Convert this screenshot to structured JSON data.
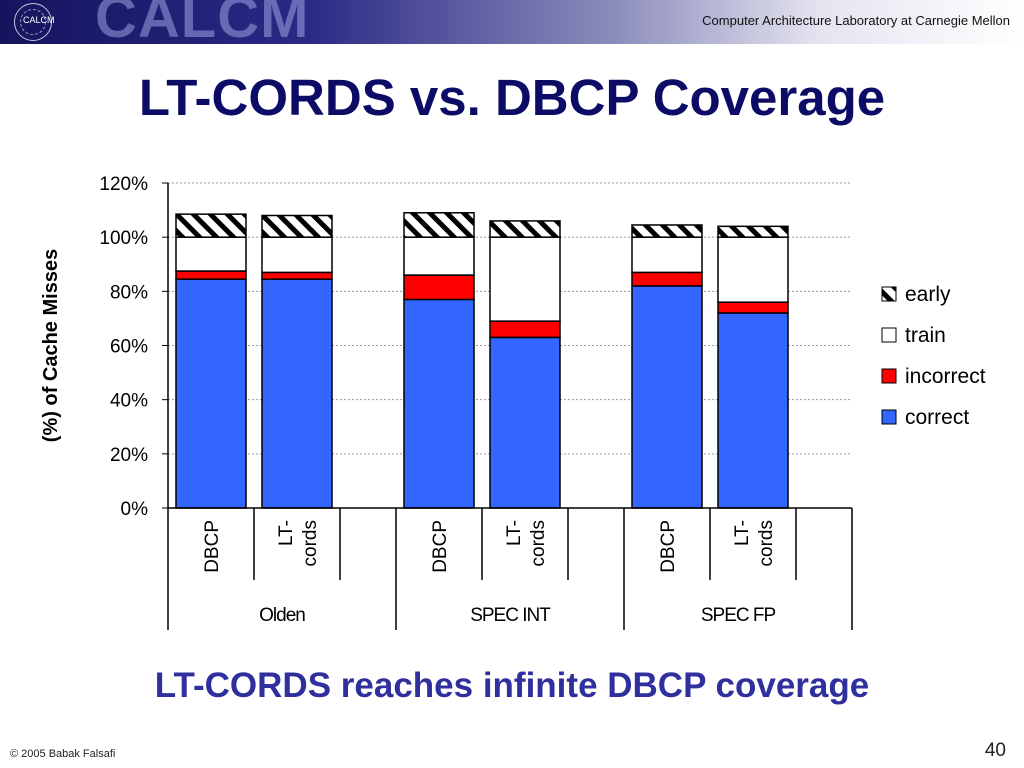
{
  "header": {
    "logo_small": "CALCM",
    "logo_big": "CALCM",
    "lab_name": "Computer Architecture Laboratory at Carnegie Mellon"
  },
  "slide": {
    "title": "LT-CORDS vs. DBCP Coverage",
    "subtitle": "LT-CORDS reaches infinite DBCP coverage",
    "copyright": "© 2005 Babak Falsafi",
    "page_number": "40"
  },
  "colors": {
    "title": "#0c0c66",
    "subtitle": "#2f2f9e",
    "correct": "#3366ff",
    "incorrect": "#ff0000",
    "train": "#ffffff",
    "early": "hatched black/white"
  },
  "chart_data": {
    "type": "bar",
    "stacked": true,
    "ylabel": "(%) of Cache Misses",
    "ylim": [
      0,
      120
    ],
    "yticks": [
      "0%",
      "20%",
      "40%",
      "60%",
      "80%",
      "100%",
      "120%"
    ],
    "grid": true,
    "legend_position": "right",
    "groups": [
      {
        "name": "Olden",
        "categories": [
          "DBCP",
          "LT-cords"
        ]
      },
      {
        "name": "SPEC INT",
        "categories": [
          "DBCP",
          "LT-cords"
        ]
      },
      {
        "name": "SPEC FP",
        "categories": [
          "DBCP",
          "LT-cords"
        ]
      }
    ],
    "series": [
      {
        "name": "correct",
        "values": [
          84.5,
          84.5,
          77,
          63,
          82,
          72
        ]
      },
      {
        "name": "incorrect",
        "values": [
          3,
          2.5,
          9,
          6,
          5,
          4
        ]
      },
      {
        "name": "train",
        "values": [
          12.5,
          13,
          14,
          31,
          13,
          24
        ]
      },
      {
        "name": "early",
        "values": [
          8.5,
          8,
          9,
          6,
          4.5,
          4
        ]
      }
    ],
    "legend": [
      "early",
      "train",
      "incorrect",
      "correct"
    ]
  }
}
